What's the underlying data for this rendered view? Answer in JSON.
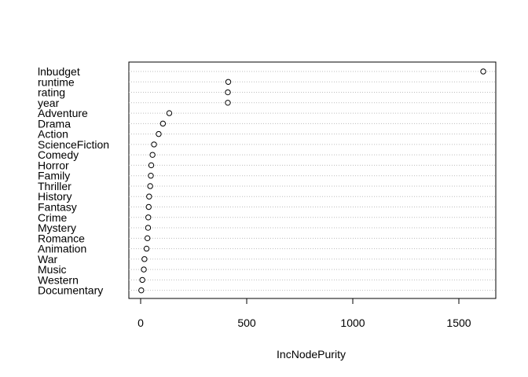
{
  "chart_data": {
    "type": "scatter",
    "title": "",
    "xlabel": "IncNodePurity",
    "ylabel": "",
    "xlim": [
      -60,
      1670
    ],
    "xticks": [
      0,
      500,
      1000,
      1500
    ],
    "grid": "dotted horizontal",
    "categories": [
      "lnbudget",
      "runtime",
      "rating",
      "year",
      "Adventure",
      "Drama",
      "Action",
      "ScienceFiction",
      "Comedy",
      "Horror",
      "Family",
      "Thriller",
      "History",
      "Fantasy",
      "Crime",
      "Mystery",
      "Romance",
      "Animation",
      "War",
      "Music",
      "Western",
      "Documentary"
    ],
    "values": [
      1615,
      413,
      411,
      411,
      135,
      105,
      85,
      63,
      56,
      50,
      48,
      45,
      40,
      38,
      36,
      35,
      32,
      28,
      18,
      15,
      8,
      3
    ]
  }
}
